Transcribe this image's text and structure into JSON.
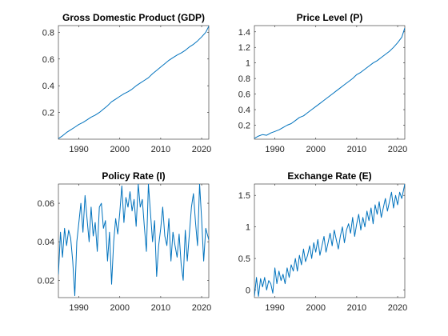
{
  "chart_data": [
    {
      "type": "line",
      "title": "Gross Domestic Product (GDP)",
      "xlabel": "",
      "ylabel": "",
      "xlim": [
        1985,
        2021.75
      ],
      "ylim": [
        0,
        0.85
      ],
      "xticks": [
        1990,
        2000,
        2010,
        2020
      ],
      "yticks": [
        0.2,
        0.4,
        0.6,
        0.8
      ],
      "yticklabels": [
        "0.2",
        "0.4",
        "0.6",
        "0.8"
      ],
      "grid": false,
      "color": "#0072BD",
      "x": [
        1985,
        1986,
        1987,
        1988,
        1989,
        1990,
        1991,
        1992,
        1993,
        1994,
        1995,
        1996,
        1997,
        1998,
        1999,
        2000,
        2001,
        2002,
        2003,
        2004,
        2005,
        2006,
        2007,
        2008,
        2009,
        2010,
        2011,
        2012,
        2013,
        2014,
        2015,
        2016,
        2017,
        2018,
        2019,
        2020,
        2021,
        2021.75
      ],
      "y": [
        0.005,
        0.025,
        0.05,
        0.07,
        0.09,
        0.11,
        0.125,
        0.145,
        0.165,
        0.18,
        0.2,
        0.225,
        0.25,
        0.28,
        0.3,
        0.32,
        0.34,
        0.355,
        0.375,
        0.4,
        0.42,
        0.44,
        0.46,
        0.49,
        0.515,
        0.54,
        0.565,
        0.59,
        0.61,
        0.63,
        0.645,
        0.665,
        0.69,
        0.71,
        0.735,
        0.765,
        0.8,
        0.845
      ]
    },
    {
      "type": "line",
      "title": "Price Level (P)",
      "xlabel": "",
      "ylabel": "",
      "xlim": [
        1985,
        2021.75
      ],
      "ylim": [
        0.02,
        1.48
      ],
      "xticks": [
        1990,
        2000,
        2010,
        2020
      ],
      "yticks": [
        0.2,
        0.4,
        0.6,
        0.8,
        1,
        1.2,
        1.4
      ],
      "yticklabels": [
        "0.2",
        "0.4",
        "0.6",
        "0.8",
        "1",
        "1.2",
        "1.4"
      ],
      "grid": false,
      "color": "#0072BD",
      "x": [
        1985,
        1986,
        1987,
        1988,
        1989,
        1990,
        1991,
        1992,
        1993,
        1994,
        1995,
        1996,
        1997,
        1998,
        1999,
        2000,
        2001,
        2002,
        2003,
        2004,
        2005,
        2006,
        2007,
        2008,
        2009,
        2010,
        2011,
        2012,
        2013,
        2014,
        2015,
        2016,
        2017,
        2018,
        2019,
        2020,
        2021,
        2021.75
      ],
      "y": [
        0.03,
        0.06,
        0.08,
        0.07,
        0.1,
        0.12,
        0.14,
        0.17,
        0.2,
        0.22,
        0.26,
        0.3,
        0.32,
        0.36,
        0.4,
        0.44,
        0.48,
        0.52,
        0.56,
        0.6,
        0.64,
        0.68,
        0.72,
        0.76,
        0.8,
        0.85,
        0.88,
        0.92,
        0.96,
        1.0,
        1.03,
        1.07,
        1.11,
        1.15,
        1.2,
        1.26,
        1.33,
        1.45
      ]
    },
    {
      "type": "line",
      "title": "Policy Rate (I)",
      "xlabel": "",
      "ylabel": "",
      "xlim": [
        1985,
        2021.75
      ],
      "ylim": [
        0.011,
        0.07
      ],
      "xticks": [
        1990,
        2000,
        2010,
        2020
      ],
      "yticks": [
        0.02,
        0.04,
        0.06
      ],
      "yticklabels": [
        "0.02",
        "0.04",
        "0.06"
      ],
      "grid": false,
      "color": "#0072BD",
      "x": [
        1985,
        1985.5,
        1986,
        1986.5,
        1987,
        1987.5,
        1988,
        1988.5,
        1989,
        1989.5,
        1990,
        1990.5,
        1991,
        1991.5,
        1992,
        1992.5,
        1993,
        1993.5,
        1994,
        1994.5,
        1995,
        1995.5,
        1996,
        1996.5,
        1997,
        1997.5,
        1998,
        1998.5,
        1999,
        1999.5,
        2000,
        2000.5,
        2001,
        2001.5,
        2002,
        2002.5,
        2003,
        2003.5,
        2004,
        2004.5,
        2005,
        2005.5,
        2006,
        2006.5,
        2007,
        2007.5,
        2008,
        2008.5,
        2009,
        2009.5,
        2010,
        2010.5,
        2011,
        2011.5,
        2012,
        2012.5,
        2013,
        2013.5,
        2014,
        2014.5,
        2015,
        2015.5,
        2016,
        2016.5,
        2017,
        2017.5,
        2018,
        2018.5,
        2019,
        2019.5,
        2020,
        2020.5,
        2021,
        2021.75
      ],
      "y": [
        0.023,
        0.045,
        0.032,
        0.047,
        0.038,
        0.046,
        0.042,
        0.03,
        0.012,
        0.04,
        0.05,
        0.06,
        0.045,
        0.064,
        0.052,
        0.04,
        0.058,
        0.043,
        0.05,
        0.035,
        0.058,
        0.06,
        0.047,
        0.051,
        0.03,
        0.045,
        0.018,
        0.04,
        0.052,
        0.044,
        0.055,
        0.069,
        0.05,
        0.063,
        0.058,
        0.066,
        0.056,
        0.062,
        0.048,
        0.07,
        0.058,
        0.062,
        0.048,
        0.035,
        0.07,
        0.055,
        0.04,
        0.051,
        0.022,
        0.038,
        0.047,
        0.058,
        0.043,
        0.038,
        0.052,
        0.03,
        0.045,
        0.038,
        0.032,
        0.044,
        0.028,
        0.02,
        0.046,
        0.03,
        0.044,
        0.058,
        0.065,
        0.05,
        0.038,
        0.07,
        0.052,
        0.03,
        0.047,
        0.041
      ]
    },
    {
      "type": "line",
      "title": "Exchange Rate (E)",
      "xlabel": "",
      "ylabel": "",
      "xlim": [
        1985,
        2021.75
      ],
      "ylim": [
        -0.12,
        1.68
      ],
      "xticks": [
        1990,
        2000,
        2010,
        2020
      ],
      "yticks": [
        0,
        0.5,
        1,
        1.5
      ],
      "yticklabels": [
        "0",
        "0.5",
        "1",
        "1.5"
      ],
      "grid": false,
      "color": "#0072BD",
      "x": [
        1985,
        1985.5,
        1986,
        1986.5,
        1987,
        1987.5,
        1988,
        1988.5,
        1989,
        1989.5,
        1990,
        1990.5,
        1991,
        1991.5,
        1992,
        1992.5,
        1993,
        1993.5,
        1994,
        1994.5,
        1995,
        1995.5,
        1996,
        1996.5,
        1997,
        1997.5,
        1998,
        1998.5,
        1999,
        1999.5,
        2000,
        2000.5,
        2001,
        2001.5,
        2002,
        2002.5,
        2003,
        2003.5,
        2004,
        2004.5,
        2005,
        2005.5,
        2006,
        2006.5,
        2007,
        2007.5,
        2008,
        2008.5,
        2009,
        2009.5,
        2010,
        2010.5,
        2011,
        2011.5,
        2012,
        2012.5,
        2013,
        2013.5,
        2014,
        2014.5,
        2015,
        2015.5,
        2016,
        2016.5,
        2017,
        2017.5,
        2018,
        2018.5,
        2019,
        2019.5,
        2020,
        2020.5,
        2021,
        2021.75
      ],
      "y": [
        -0.1,
        0.2,
        -0.1,
        0.18,
        0.05,
        0.2,
        0.0,
        0.15,
        0.1,
        -0.05,
        0.35,
        0.1,
        0.3,
        0.15,
        0.25,
        0.1,
        0.35,
        0.2,
        0.4,
        0.3,
        0.5,
        0.3,
        0.55,
        0.4,
        0.65,
        0.45,
        0.55,
        0.7,
        0.5,
        0.75,
        0.6,
        0.8,
        0.55,
        0.7,
        0.85,
        0.6,
        0.75,
        0.9,
        0.7,
        0.95,
        0.8,
        0.65,
        0.85,
        1.0,
        0.75,
        0.95,
        1.05,
        0.9,
        1.15,
        0.85,
        1.05,
        1.2,
        0.95,
        1.15,
        1.0,
        1.25,
        1.1,
        1.3,
        1.05,
        1.35,
        1.2,
        1.4,
        1.15,
        1.3,
        1.45,
        1.25,
        1.4,
        1.55,
        1.3,
        1.5,
        1.35,
        1.55,
        1.45,
        1.68
      ]
    }
  ]
}
